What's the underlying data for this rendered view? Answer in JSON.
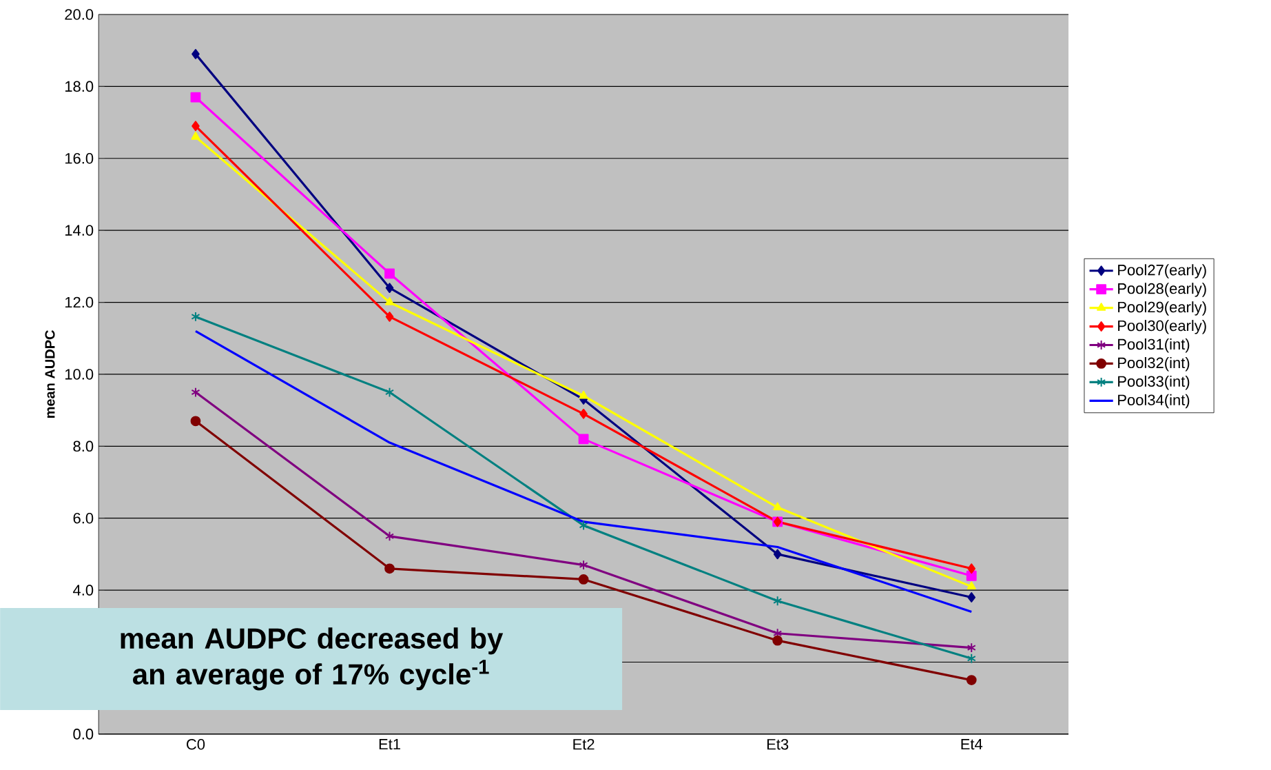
{
  "chart_data": {
    "type": "line",
    "ylabel": "mean AUDPC",
    "categories": [
      "C0",
      "Et1",
      "Et2",
      "Et3",
      "Et4"
    ],
    "series": [
      {
        "name": "Pool27(early)",
        "color": "#000080",
        "marker": "diamond",
        "values": [
          18.9,
          12.4,
          9.3,
          5.0,
          3.8
        ]
      },
      {
        "name": "Pool28(early)",
        "color": "#ff00ff",
        "marker": "square",
        "values": [
          17.7,
          12.8,
          8.2,
          5.9,
          4.4
        ]
      },
      {
        "name": "Pool29(early)",
        "color": "#ffff00",
        "marker": "triangle",
        "values": [
          16.6,
          12.0,
          9.4,
          6.3,
          4.1
        ]
      },
      {
        "name": "Pool30(early)",
        "color": "#ff0000",
        "marker": "diamond",
        "values": [
          16.9,
          11.6,
          8.9,
          5.9,
          4.6
        ]
      },
      {
        "name": "Pool31(int)",
        "color": "#800080",
        "marker": "cross",
        "values": [
          9.5,
          5.5,
          4.7,
          2.8,
          2.4
        ]
      },
      {
        "name": "Pool32(int)",
        "color": "#800000",
        "marker": "circle",
        "values": [
          8.7,
          4.6,
          4.3,
          2.6,
          1.5
        ]
      },
      {
        "name": "Pool33(int)",
        "color": "#008080",
        "marker": "cross",
        "values": [
          11.6,
          9.5,
          5.8,
          3.7,
          2.1
        ]
      },
      {
        "name": "Pool34(int)",
        "color": "#0000ff",
        "marker": "none",
        "values": [
          11.2,
          8.1,
          5.9,
          5.2,
          3.4
        ]
      }
    ],
    "ylim": [
      0,
      20
    ],
    "yticks": [
      {
        "value": 0,
        "label": "0.0"
      },
      {
        "value": 2,
        "label": null
      },
      {
        "value": 4,
        "label": "4.0"
      },
      {
        "value": 6,
        "label": "6.0"
      },
      {
        "value": 8,
        "label": "8.0"
      },
      {
        "value": 10,
        "label": "10.0"
      },
      {
        "value": 12,
        "label": "12.0"
      },
      {
        "value": 14,
        "label": "14.0"
      },
      {
        "value": 16,
        "label": "16.0"
      },
      {
        "value": 18,
        "label": "18.0"
      },
      {
        "value": 20,
        "label": "20.0"
      }
    ],
    "grid": "y",
    "legend": "right",
    "line_style": "solid",
    "annotations": [
      "mean AUDPC decreased by an average of 17% cycle$^{-1}$"
    ]
  }
}
